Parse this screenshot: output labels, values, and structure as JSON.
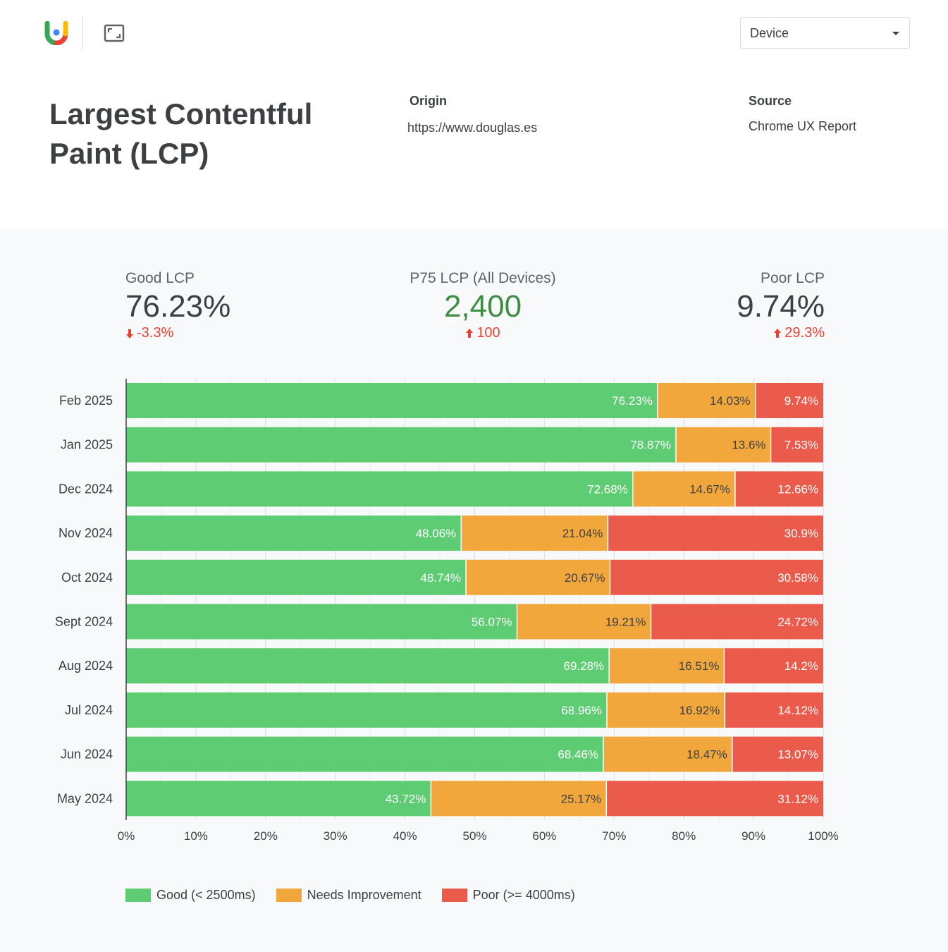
{
  "header": {
    "device_select": {
      "value": "Device"
    },
    "icons": {
      "logo": "crux-logo-icon",
      "fullscreen": "fullscreen-icon"
    }
  },
  "report": {
    "title": "Largest Contentful Paint (LCP)",
    "origin_label": "Origin",
    "origin_value": "https://www.douglas.es",
    "source_label": "Source",
    "source_value": "Chrome UX Report"
  },
  "kpis": {
    "good": {
      "label": "Good LCP",
      "value": "76.23%",
      "delta": "-3.3%",
      "direction": "down"
    },
    "p75": {
      "label": "P75 LCP (All Devices)",
      "value": "2,400",
      "delta": "100",
      "direction": "up"
    },
    "poor": {
      "label": "Poor LCP",
      "value": "9.74%",
      "delta": "29.3%",
      "direction": "up"
    }
  },
  "colors": {
    "good": "#5ecc73",
    "needs": "#f1a73b",
    "poor": "#eb5b4c",
    "p75_value": "#3e8e41",
    "delta": "#ea4335"
  },
  "legend": {
    "good": "Good (< 2500ms)",
    "needs": "Needs Improvement",
    "poor": "Poor (>= 4000ms)"
  },
  "chart_data": {
    "type": "bar",
    "orientation": "horizontal",
    "stacked": true,
    "categories": [
      "Feb 2025",
      "Jan 2025",
      "Dec 2024",
      "Nov 2024",
      "Oct 2024",
      "Sept 2024",
      "Aug 2024",
      "Jul 2024",
      "Jun 2024",
      "May 2024"
    ],
    "series": [
      {
        "name": "Good (< 2500ms)",
        "values": [
          76.23,
          78.87,
          72.68,
          48.06,
          48.74,
          56.07,
          69.28,
          68.96,
          68.46,
          43.72
        ],
        "labels": [
          "76.23%",
          "78.87%",
          "72.68%",
          "48.06%",
          "48.74%",
          "56.07%",
          "69.28%",
          "68.96%",
          "68.46%",
          "43.72%"
        ]
      },
      {
        "name": "Needs Improvement",
        "values": [
          14.03,
          13.6,
          14.67,
          21.04,
          20.67,
          19.21,
          16.51,
          16.92,
          18.47,
          25.17
        ],
        "labels": [
          "14.03%",
          "13.6%",
          "14.67%",
          "21.04%",
          "20.67%",
          "19.21%",
          "16.51%",
          "16.92%",
          "18.47%",
          "25.17%"
        ]
      },
      {
        "name": "Poor (>= 4000ms)",
        "values": [
          9.74,
          7.53,
          12.66,
          30.9,
          30.58,
          24.72,
          14.2,
          14.12,
          13.07,
          31.12
        ],
        "labels": [
          "9.74%",
          "7.53%",
          "12.66%",
          "30.9%",
          "30.58%",
          "24.72%",
          "14.2%",
          "14.12%",
          "13.07%",
          "31.12%"
        ]
      }
    ],
    "xlim": [
      0,
      100
    ],
    "x_ticks": [
      "0%",
      "10%",
      "20%",
      "30%",
      "40%",
      "50%",
      "60%",
      "70%",
      "80%",
      "90%",
      "100%"
    ],
    "grid": true,
    "legend_position": "bottom-left"
  }
}
